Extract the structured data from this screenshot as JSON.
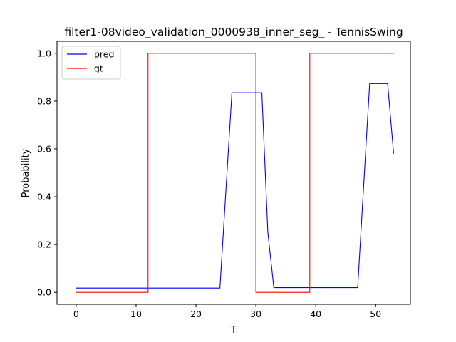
{
  "chart_data": {
    "type": "line",
    "title": "filter1-08video_validation_0000938_inner_seg_ - TennisSwing",
    "xlabel": "T",
    "ylabel": "Probability",
    "xlim": [
      -3.2,
      55.8
    ],
    "ylim": [
      -0.05,
      1.05
    ],
    "xticks": [
      0,
      10,
      20,
      30,
      40,
      50
    ],
    "yticks": [
      0.0,
      0.2,
      0.4,
      0.6,
      0.8,
      1.0
    ],
    "xtick_labels": [
      "0",
      "10",
      "20",
      "30",
      "40",
      "50"
    ],
    "ytick_labels": [
      "0.0",
      "0.2",
      "0.4",
      "0.6",
      "0.8",
      "1.0"
    ],
    "grid": false,
    "legend": {
      "placement": "top-left",
      "entries": [
        "pred",
        "gt"
      ]
    },
    "series": [
      {
        "name": "pred",
        "color": "#0000ff",
        "step": false,
        "x": [
          0,
          24,
          26,
          31,
          32,
          33,
          47,
          49,
          52,
          53
        ],
        "y": [
          0.018,
          0.018,
          0.835,
          0.835,
          0.25,
          0.02,
          0.02,
          0.873,
          0.873,
          0.58
        ]
      },
      {
        "name": "gt",
        "color": "#ff0000",
        "step": true,
        "x": [
          0,
          12,
          12,
          30,
          30,
          39,
          39,
          53
        ],
        "y": [
          0,
          0,
          1,
          1,
          0,
          0,
          1,
          1
        ]
      }
    ]
  }
}
